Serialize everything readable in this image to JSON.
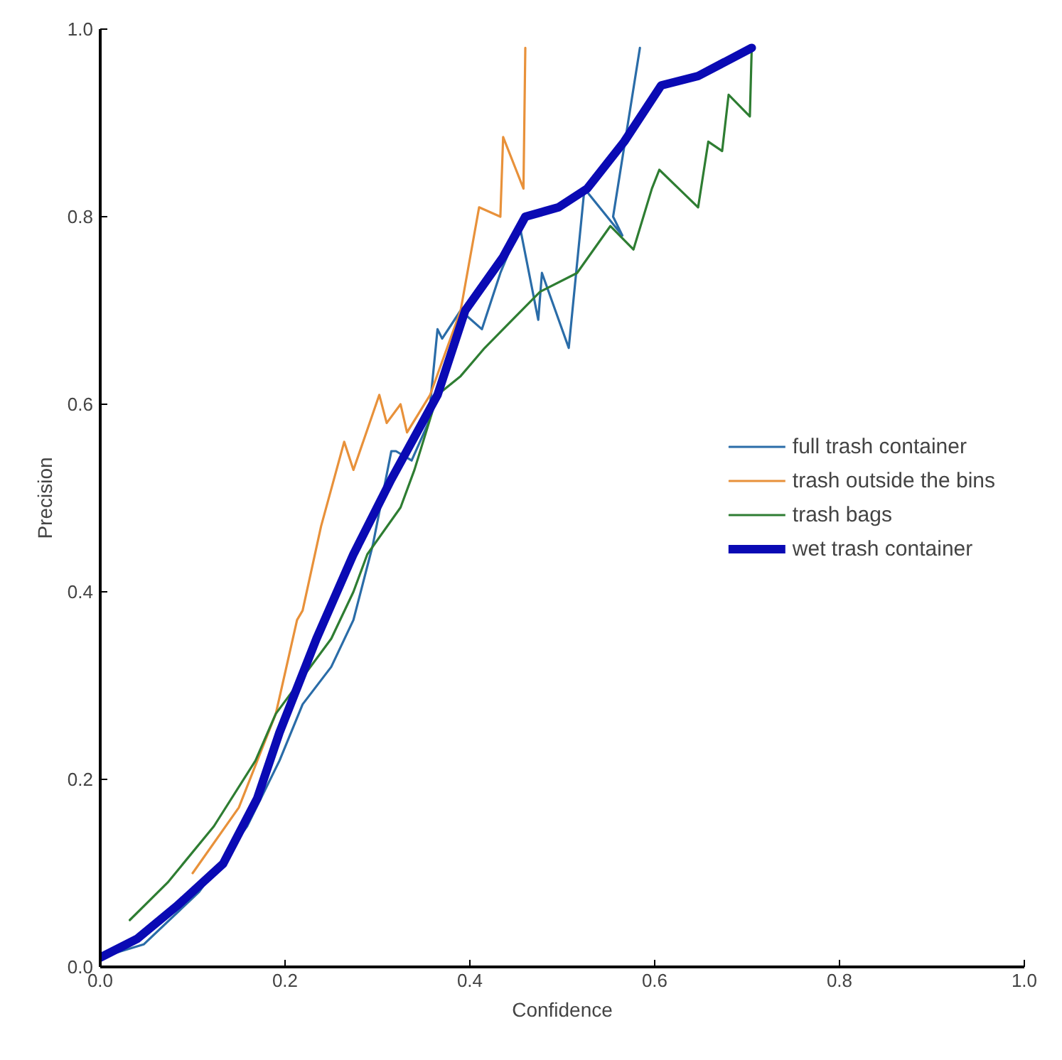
{
  "chart_data": {
    "type": "line",
    "xlabel": "Confidence",
    "ylabel": "Precision",
    "xlim": [
      0,
      1
    ],
    "ylim": [
      0,
      1
    ],
    "xticks": [
      {
        "value": 0,
        "label": "0.0"
      },
      {
        "value": 0.2,
        "label": "0.2"
      },
      {
        "value": 0.4,
        "label": "0.4"
      },
      {
        "value": 0.6,
        "label": "0.6"
      },
      {
        "value": 0.8,
        "label": "0.8"
      },
      {
        "value": 1,
        "label": "1.0"
      }
    ],
    "yticks": [
      {
        "value": 0,
        "label": "0.0"
      },
      {
        "value": 0.2,
        "label": "0.2"
      },
      {
        "value": 0.4,
        "label": "0.4"
      },
      {
        "value": 0.6,
        "label": "0.6"
      },
      {
        "value": 0.8,
        "label": "0.8"
      },
      {
        "value": 1,
        "label": "1.0"
      }
    ],
    "grid": false,
    "legend": "right",
    "marker": "none",
    "line_style": "solid",
    "series": [
      {
        "name": "full trash container",
        "color": "#2a6ca8",
        "x": [
          0,
          0.047,
          0.107,
          0.159,
          0.194,
          0.219,
          0.25,
          0.274,
          0.295,
          0.315,
          0.32,
          0.337,
          0.355,
          0.365,
          0.37,
          0.39,
          0.413,
          0.433,
          0.454,
          0.474,
          0.478,
          0.507,
          0.524,
          0.565,
          0.555,
          0.584
        ],
        "values": [
          0.01,
          0.024,
          0.08,
          0.15,
          0.22,
          0.28,
          0.32,
          0.37,
          0.45,
          0.55,
          0.55,
          0.54,
          0.58,
          0.68,
          0.67,
          0.7,
          0.68,
          0.74,
          0.79,
          0.69,
          0.74,
          0.66,
          0.83,
          0.78,
          0.8,
          0.98
        ]
      },
      {
        "name": "trash outside the bins",
        "color": "#e8913a",
        "x": [
          0.1,
          0.15,
          0.19,
          0.213,
          0.219,
          0.239,
          0.264,
          0.274,
          0.302,
          0.31,
          0.325,
          0.332,
          0.357,
          0.39,
          0.41,
          0.433,
          0.436,
          0.45,
          0.458,
          0.46
        ],
        "values": [
          0.1,
          0.17,
          0.27,
          0.37,
          0.38,
          0.47,
          0.56,
          0.53,
          0.61,
          0.58,
          0.6,
          0.57,
          0.61,
          0.7,
          0.81,
          0.8,
          0.885,
          0.85,
          0.83,
          0.98
        ]
      },
      {
        "name": "trash bags",
        "color": "#2e7d32",
        "x": [
          0.032,
          0.073,
          0.123,
          0.168,
          0.19,
          0.25,
          0.274,
          0.289,
          0.325,
          0.34,
          0.365,
          0.39,
          0.416,
          0.446,
          0.476,
          0.516,
          0.552,
          0.577,
          0.597,
          0.605,
          0.647,
          0.658,
          0.673,
          0.68,
          0.703,
          0.705
        ],
        "values": [
          0.05,
          0.09,
          0.15,
          0.22,
          0.27,
          0.35,
          0.4,
          0.44,
          0.49,
          0.53,
          0.61,
          0.63,
          0.66,
          0.69,
          0.72,
          0.74,
          0.79,
          0.765,
          0.83,
          0.85,
          0.81,
          0.88,
          0.87,
          0.93,
          0.907,
          0.98
        ]
      },
      {
        "name": "wet trash container",
        "color": "#0a0ab4",
        "x": [
          0,
          0.04,
          0.083,
          0.133,
          0.17,
          0.194,
          0.234,
          0.274,
          0.315,
          0.365,
          0.395,
          0.436,
          0.46,
          0.496,
          0.527,
          0.567,
          0.607,
          0.647,
          0.705
        ],
        "values": [
          0.01,
          0.03,
          0.065,
          0.11,
          0.18,
          0.25,
          0.35,
          0.44,
          0.52,
          0.61,
          0.7,
          0.757,
          0.8,
          0.81,
          0.83,
          0.88,
          0.94,
          0.95,
          0.98
        ]
      }
    ]
  }
}
